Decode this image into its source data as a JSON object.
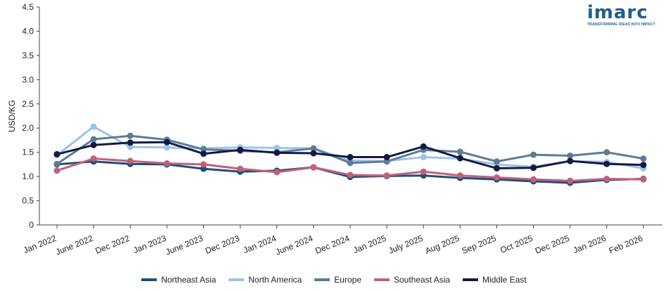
{
  "brand": {
    "logo_text": "imarc",
    "tagline": "TRANSFORMING IDEAS INTO IMPACT"
  },
  "chart_data": {
    "type": "line",
    "title": "",
    "xlabel": "",
    "ylabel": "USD/KG",
    "ylim": [
      0,
      4.5
    ],
    "yticks": [
      "0",
      "0.5",
      "1.0",
      "1.5",
      "2.0",
      "2.5",
      "3.0",
      "3.5",
      "4.0",
      "4.5"
    ],
    "grid": false,
    "legend_position": "bottom",
    "categories": [
      "Jan 2022",
      "June 2022",
      "Dec 2022",
      "Jan 2023",
      "June 2023",
      "Dec 2023",
      "Jan 2024",
      "June 2024",
      "Dec 2024",
      "Jan 2025",
      "July 2025",
      "Aug 2025",
      "Sep 2025",
      "Oct 2025",
      "Dec 2025",
      "Jan 2026",
      "Feb 2026"
    ],
    "series": [
      {
        "name": "Northeast Asia",
        "color": "#1f4e79",
        "values": [
          1.25,
          1.31,
          1.26,
          1.25,
          1.16,
          1.1,
          1.12,
          1.19,
          0.99,
          1.01,
          1.02,
          0.97,
          0.94,
          0.9,
          0.87,
          0.93,
          0.95
        ]
      },
      {
        "name": "North America",
        "color": "#9dc3e6",
        "values": [
          1.44,
          2.03,
          1.61,
          1.6,
          1.58,
          1.6,
          1.59,
          1.58,
          1.33,
          1.32,
          1.4,
          1.37,
          1.25,
          1.2,
          1.32,
          1.3,
          1.17
        ]
      },
      {
        "name": "Europe",
        "color": "#5d7b96",
        "values": [
          1.26,
          1.77,
          1.84,
          1.76,
          1.56,
          1.53,
          1.5,
          1.58,
          1.28,
          1.31,
          1.55,
          1.51,
          1.31,
          1.45,
          1.43,
          1.5,
          1.37
        ]
      },
      {
        "name": "Southeast Asia",
        "color": "#c0607a",
        "values": [
          1.12,
          1.37,
          1.32,
          1.27,
          1.25,
          1.16,
          1.09,
          1.19,
          1.03,
          1.02,
          1.1,
          1.02,
          0.98,
          0.94,
          0.91,
          0.95,
          0.94
        ]
      },
      {
        "name": "Middle East",
        "color": "#141a44",
        "values": [
          1.46,
          1.65,
          1.7,
          1.71,
          1.47,
          1.55,
          1.49,
          1.48,
          1.4,
          1.4,
          1.62,
          1.38,
          1.17,
          1.18,
          1.32,
          1.26,
          1.24
        ]
      }
    ]
  }
}
